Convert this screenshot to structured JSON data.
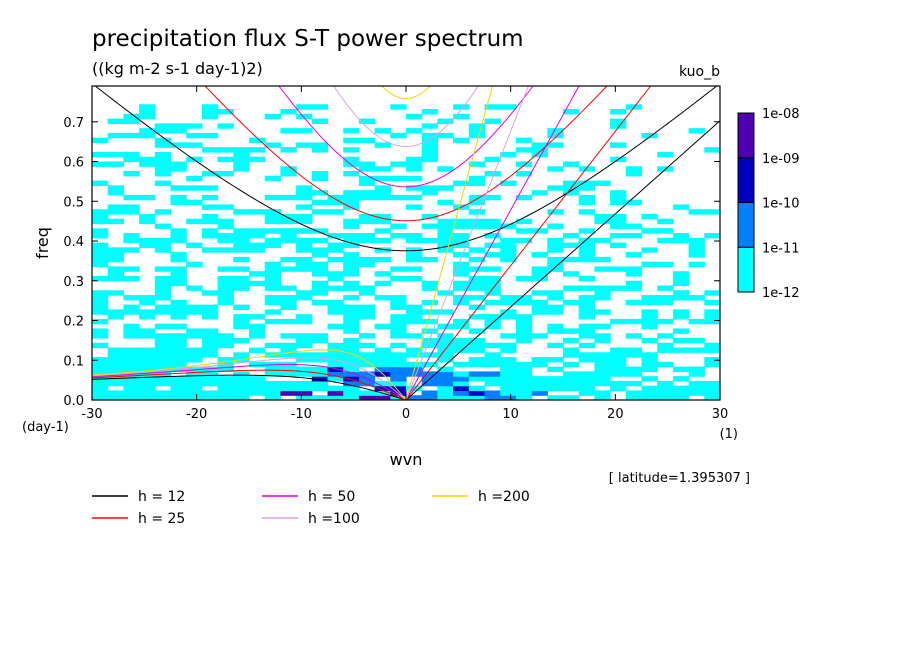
{
  "chart_data": {
    "type": "heatmap",
    "title": "precipitation flux S-T power spectrum",
    "subtitle": "((kg m-2 s-1 day-1)2)",
    "model_label": "kuo_b",
    "xlabel": "wvn",
    "ylabel": "freq",
    "x_unit_label": "(1)",
    "y_unit_label": "(day-1)",
    "latitude_label": "[ latitude=1.395307 ]",
    "xlim": [
      -30,
      30
    ],
    "ylim": [
      0,
      0.79
    ],
    "x_ticks": [
      -30,
      -20,
      -10,
      0,
      10,
      20,
      30
    ],
    "x_tick_labels": [
      "-30",
      "-20",
      "-10",
      "0",
      "10",
      "20",
      "30"
    ],
    "y_ticks": [
      0,
      0.1,
      0.2,
      0.3,
      0.4,
      0.5,
      0.6,
      0.7
    ],
    "y_tick_labels": [
      "0.0",
      "0.1",
      "0.2",
      "0.3",
      "0.4",
      "0.5",
      "0.6",
      "0.7"
    ],
    "colorbar": {
      "levels": [
        "1e-12",
        "1e-11",
        "1e-10",
        "1e-09",
        "1e-08"
      ],
      "colors": [
        "#00ffff",
        "#0080ff",
        "#0000c0",
        "#5000b0"
      ]
    },
    "dispersion_curves": [
      {
        "name": "h = 12",
        "color": "#000000"
      },
      {
        "name": "h = 25",
        "color": "#ff0000"
      },
      {
        "name": "h = 50",
        "color": "#e000e0"
      },
      {
        "name": "h =100",
        "color": "#e0a0e0"
      },
      {
        "name": "h =200",
        "color": "#ffd000"
      }
    ]
  }
}
